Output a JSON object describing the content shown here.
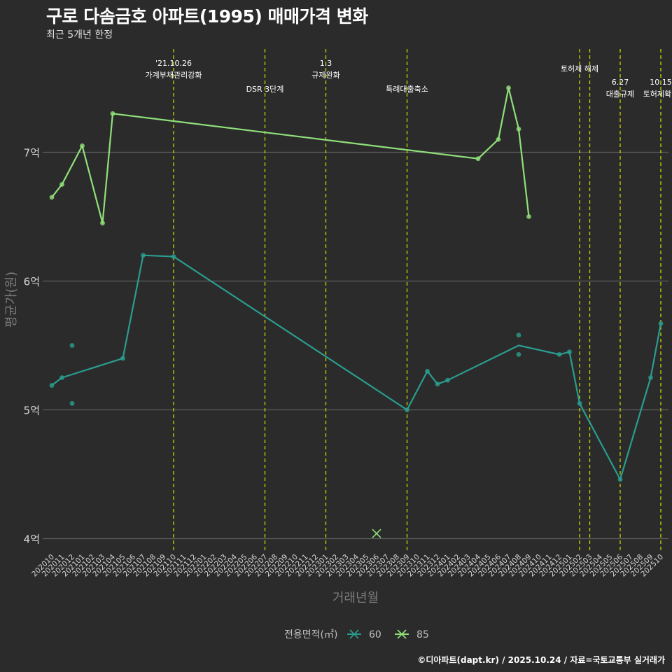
{
  "title": "구로 다솜금호 아파트(1995) 매매가격 변화",
  "subtitle": "최근 5개년 한정",
  "caption": "©디아파트(dapt.kr) / 2025.10.24 / 자료=국토교통부 실거래가",
  "chart_data": {
    "type": "line",
    "xlabel": "거래년월",
    "ylabel": "평균가(원)",
    "ylim": [
      3.9,
      7.95
    ],
    "yticks": [
      {
        "v": 4,
        "label": "4억"
      },
      {
        "v": 5,
        "label": "5억"
      },
      {
        "v": 6,
        "label": "6억"
      },
      {
        "v": 7,
        "label": "7억"
      }
    ],
    "grid": true,
    "categories": [
      "202010",
      "202011",
      "202012",
      "202101",
      "202102",
      "202103",
      "202104",
      "202105",
      "202106",
      "202107",
      "202108",
      "202109",
      "202110",
      "202111",
      "202112",
      "202201",
      "202202",
      "202203",
      "202204",
      "202205",
      "202206",
      "202207",
      "202208",
      "202209",
      "202210",
      "202211",
      "202212",
      "202301",
      "202302",
      "202303",
      "202304",
      "202305",
      "202306",
      "202307",
      "202308",
      "202309",
      "202310",
      "202311",
      "202312",
      "202401",
      "202402",
      "202403",
      "202404",
      "202405",
      "202406",
      "202407",
      "202408",
      "202409",
      "202410",
      "202411",
      "202412",
      "202501",
      "202502",
      "202503",
      "202504",
      "202505",
      "202506",
      "202507",
      "202508",
      "202509",
      "202510"
    ],
    "series": [
      {
        "name": "60",
        "color": "#2a9d8f",
        "line": [
          [
            "202010",
            5.19
          ],
          [
            "202011",
            5.25
          ],
          [
            "202105",
            5.4
          ],
          [
            "202107",
            6.2
          ],
          [
            "202110",
            6.19
          ],
          [
            "202309",
            5.0
          ],
          [
            "202311",
            5.3
          ],
          [
            "202312",
            5.2
          ],
          [
            "202401",
            5.23
          ],
          [
            "202408",
            5.5
          ],
          [
            "202412",
            5.43
          ],
          [
            "202501",
            5.45
          ],
          [
            "202502",
            5.05
          ],
          [
            "202506",
            4.46
          ],
          [
            "202509",
            5.25
          ],
          [
            "202510",
            5.67
          ]
        ],
        "points": [
          [
            "202010",
            5.19
          ],
          [
            "202011",
            5.25
          ],
          [
            "202012",
            5.5
          ],
          [
            "202012",
            5.05
          ],
          [
            "202105",
            5.4
          ],
          [
            "202107",
            6.2
          ],
          [
            "202110",
            6.19
          ],
          [
            "202309",
            5.0
          ],
          [
            "202311",
            5.3
          ],
          [
            "202312",
            5.2
          ],
          [
            "202401",
            5.23
          ],
          [
            "202408",
            5.58
          ],
          [
            "202408",
            5.43
          ],
          [
            "202412",
            5.43
          ],
          [
            "202501",
            5.45
          ],
          [
            "202502",
            5.05
          ],
          [
            "202506",
            4.46
          ],
          [
            "202509",
            5.25
          ],
          [
            "202510",
            5.67
          ]
        ]
      },
      {
        "name": "85",
        "color": "#90e07a",
        "line": [
          [
            "202010",
            6.65
          ],
          [
            "202011",
            6.75
          ],
          [
            "202101",
            7.05
          ],
          [
            "202103",
            6.45
          ],
          [
            "202104",
            7.3
          ],
          [
            "202404",
            6.95
          ],
          [
            "202406",
            7.1
          ],
          [
            "202407",
            7.5
          ],
          [
            "202408",
            7.18
          ],
          [
            "202409",
            6.5
          ]
        ],
        "points": [
          [
            "202010",
            6.65
          ],
          [
            "202011",
            6.75
          ],
          [
            "202101",
            7.05
          ],
          [
            "202103",
            6.45
          ],
          [
            "202104",
            7.3
          ],
          [
            "202404",
            6.95
          ],
          [
            "202406",
            7.1
          ],
          [
            "202407",
            7.5
          ],
          [
            "202408",
            7.18
          ],
          [
            "202409",
            6.5
          ]
        ]
      }
    ],
    "outliers": [
      {
        "series": "85",
        "x": "202306",
        "y": 4.04,
        "marker": "x"
      }
    ],
    "events": [
      {
        "x": "202110",
        "lines": [
          "'21.10.26",
          "가계부채관리강화"
        ],
        "row": 0
      },
      {
        "x": "202207",
        "lines": [
          "DSR 3단계"
        ],
        "row": 1
      },
      {
        "x": "202301",
        "lines": [
          "1.3",
          "규제완화"
        ],
        "row": 0
      },
      {
        "x": "202309",
        "lines": [
          "특례대출축소"
        ],
        "row": 1
      },
      {
        "x": "202502",
        "lines": [
          "토허제 해제"
        ],
        "row": 0.35
      },
      {
        "x": "202503",
        "lines": [],
        "row": 0
      },
      {
        "x": "202506",
        "lines": [
          "6.27",
          "대출규제"
        ],
        "row": 1
      },
      {
        "x": "202510",
        "lines": [
          "10.15",
          "토허제확대"
        ],
        "row": 1
      }
    ],
    "legend": {
      "title": "전용면적(㎡)",
      "position": "bottom",
      "items": [
        "60",
        "85"
      ]
    }
  }
}
